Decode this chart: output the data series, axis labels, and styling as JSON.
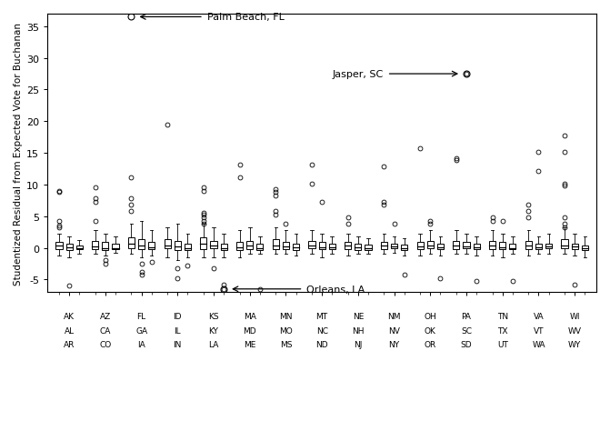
{
  "ylabel": "Studentized Residual from Expected Vote for Buchanan",
  "ylim": [
    -7,
    37
  ],
  "yticks": [
    -5,
    0,
    5,
    10,
    15,
    20,
    25,
    30,
    35
  ],
  "state_groups": [
    [
      "AK",
      "AL",
      "AR"
    ],
    [
      "AZ",
      "CA",
      "CO"
    ],
    [
      "FL",
      "GA",
      "IA"
    ],
    [
      "ID",
      "IL",
      "IN"
    ],
    [
      "KS",
      "KY",
      "LA"
    ],
    [
      "MA",
      "MD",
      "ME"
    ],
    [
      "MN",
      "MO",
      "MS"
    ],
    [
      "MT",
      "NC",
      "ND"
    ],
    [
      "NE",
      "NH",
      "NJ"
    ],
    [
      "NM",
      "NV",
      "NY"
    ],
    [
      "OH",
      "OK",
      "OR"
    ],
    [
      "PA",
      "SC",
      "SD"
    ],
    [
      "TN",
      "TX",
      "UT"
    ],
    [
      "VA",
      "VT",
      "WA"
    ],
    [
      "WI",
      "WV",
      "WY"
    ]
  ],
  "background_color": "#ffffff",
  "box_color": "white",
  "group_stats": [
    {
      "medians": [
        0.3,
        0.1,
        0.0
      ],
      "q1": [
        -0.2,
        -0.3,
        -0.2
      ],
      "q3": [
        0.9,
        0.6,
        0.4
      ],
      "wlo": [
        -1.2,
        -1.5,
        -1.0
      ],
      "whi": [
        2.2,
        1.8,
        1.2
      ],
      "outliers": [
        [
          3.5,
          3.3,
          4.2,
          8.8,
          9.0
        ],
        [
          -6.0
        ],
        []
      ]
    },
    {
      "medians": [
        0.2,
        0.0,
        0.0
      ],
      "q1": [
        -0.2,
        -0.3,
        -0.2
      ],
      "q3": [
        1.1,
        0.9,
        0.6
      ],
      "wlo": [
        -1.0,
        -1.2,
        -0.8
      ],
      "whi": [
        2.8,
        2.2,
        1.8
      ],
      "outliers": [
        [
          4.2,
          7.8,
          7.2,
          9.5
        ],
        [
          -2.0,
          -2.5
        ],
        []
      ]
    },
    {
      "medians": [
        0.6,
        0.3,
        0.1
      ],
      "q1": [
        -0.1,
        -0.2,
        -0.2
      ],
      "q3": [
        1.6,
        1.3,
        0.9
      ],
      "wlo": [
        -1.0,
        -1.5,
        -1.2
      ],
      "whi": [
        3.8,
        4.2,
        2.8
      ],
      "outliers": [
        [
          11.2,
          7.8,
          6.8,
          5.8
        ],
        [
          -2.5,
          -4.2,
          -3.8
        ],
        [
          -2.2
        ]
      ]
    },
    {
      "medians": [
        0.4,
        0.2,
        0.0
      ],
      "q1": [
        -0.1,
        -0.3,
        -0.3
      ],
      "q3": [
        1.3,
        1.1,
        0.7
      ],
      "wlo": [
        -1.5,
        -2.0,
        -1.5
      ],
      "whi": [
        3.2,
        3.8,
        2.2
      ],
      "outliers": [
        [
          19.5
        ],
        [
          -4.8,
          -3.2
        ],
        [
          -2.8
        ]
      ]
    },
    {
      "medians": [
        0.6,
        0.4,
        -0.1
      ],
      "q1": [
        -0.2,
        -0.1,
        -0.4
      ],
      "q3": [
        1.6,
        1.1,
        0.6
      ],
      "wlo": [
        -1.5,
        -1.5,
        -1.5
      ],
      "whi": [
        3.8,
        3.2,
        2.2
      ],
      "outliers": [
        [
          9.5,
          9.0,
          5.5,
          5.2,
          4.8,
          4.2,
          3.8
        ],
        [
          -3.2
        ],
        [
          -5.8,
          -6.5
        ]
      ]
    },
    {
      "medians": [
        0.1,
        0.3,
        0.0
      ],
      "q1": [
        -0.4,
        -0.2,
        -0.3
      ],
      "q3": [
        0.9,
        1.1,
        0.6
      ],
      "wlo": [
        -1.5,
        -1.0,
        -1.0
      ],
      "whi": [
        2.8,
        3.2,
        1.8
      ],
      "outliers": [
        [
          13.2,
          11.2
        ],
        [],
        [
          -6.5
        ]
      ]
    },
    {
      "medians": [
        0.3,
        0.2,
        0.1
      ],
      "q1": [
        -0.2,
        -0.2,
        -0.3
      ],
      "q3": [
        1.3,
        0.9,
        0.6
      ],
      "wlo": [
        -1.0,
        -1.0,
        -1.2
      ],
      "whi": [
        3.2,
        2.8,
        2.2
      ],
      "outliers": [
        [
          9.2,
          8.8,
          8.2,
          5.8,
          5.2
        ],
        [
          3.8
        ],
        []
      ]
    },
    {
      "medians": [
        0.4,
        0.1,
        0.1
      ],
      "q1": [
        -0.1,
        -0.2,
        -0.2
      ],
      "q3": [
        1.1,
        0.9,
        0.6
      ],
      "wlo": [
        -1.0,
        -1.5,
        -1.0
      ],
      "whi": [
        2.8,
        2.2,
        1.8
      ],
      "outliers": [
        [
          13.2,
          10.2
        ],
        [
          7.2
        ],
        []
      ]
    },
    {
      "medians": [
        0.3,
        0.1,
        0.0
      ],
      "q1": [
        -0.2,
        -0.3,
        -0.3
      ],
      "q3": [
        0.9,
        0.6,
        0.5
      ],
      "wlo": [
        -1.2,
        -1.0,
        -1.0
      ],
      "whi": [
        2.2,
        1.8,
        1.5
      ],
      "outliers": [
        [
          4.8,
          3.8
        ],
        [],
        []
      ]
    },
    {
      "medians": [
        0.3,
        0.2,
        0.0
      ],
      "q1": [
        -0.2,
        -0.1,
        -0.3
      ],
      "q3": [
        0.9,
        0.7,
        0.5
      ],
      "wlo": [
        -1.0,
        -0.8,
        -1.2
      ],
      "whi": [
        2.2,
        1.8,
        1.5
      ],
      "outliers": [
        [
          12.8,
          7.2,
          6.8
        ],
        [
          3.8
        ],
        [
          -4.2
        ]
      ]
    },
    {
      "medians": [
        0.2,
        0.4,
        0.1
      ],
      "q1": [
        -0.2,
        -0.1,
        -0.2
      ],
      "q3": [
        0.9,
        1.1,
        0.7
      ],
      "wlo": [
        -1.2,
        -1.0,
        -1.2
      ],
      "whi": [
        2.2,
        2.8,
        1.8
      ],
      "outliers": [
        [
          15.8
        ],
        [
          4.2,
          3.8
        ],
        [
          -4.8
        ]
      ]
    },
    {
      "medians": [
        0.3,
        0.2,
        0.1
      ],
      "q1": [
        -0.2,
        -0.1,
        -0.2
      ],
      "q3": [
        1.1,
        0.9,
        0.6
      ],
      "wlo": [
        -1.0,
        -1.0,
        -1.2
      ],
      "whi": [
        2.8,
        2.2,
        1.8
      ],
      "outliers": [
        [
          14.2,
          13.8
        ],
        [
          27.5
        ],
        [
          -5.2
        ]
      ]
    },
    {
      "medians": [
        0.3,
        0.1,
        0.0
      ],
      "q1": [
        -0.2,
        -0.2,
        -0.2
      ],
      "q3": [
        1.1,
        0.9,
        0.6
      ],
      "wlo": [
        -1.2,
        -1.5,
        -1.0
      ],
      "whi": [
        2.8,
        2.2,
        1.8
      ],
      "outliers": [
        [
          4.8,
          4.2
        ],
        [
          4.2
        ],
        [
          -5.2
        ]
      ]
    },
    {
      "medians": [
        0.3,
        0.1,
        0.2
      ],
      "q1": [
        -0.2,
        -0.2,
        -0.1
      ],
      "q3": [
        1.1,
        0.6,
        0.7
      ],
      "wlo": [
        -1.2,
        -1.0,
        -1.0
      ],
      "whi": [
        2.8,
        1.8,
        2.2
      ],
      "outliers": [
        [
          6.8,
          5.8,
          4.8
        ],
        [
          12.2,
          15.2
        ],
        []
      ]
    },
    {
      "medians": [
        0.4,
        0.2,
        0.0
      ],
      "q1": [
        -0.1,
        -0.2,
        -0.3
      ],
      "q3": [
        1.3,
        0.7,
        0.4
      ],
      "wlo": [
        -1.0,
        -1.2,
        -1.5
      ],
      "whi": [
        3.2,
        2.2,
        1.8
      ],
      "outliers": [
        [
          17.8,
          15.2,
          10.2,
          9.8,
          4.8,
          3.8,
          3.2
        ],
        [
          -5.8
        ],
        []
      ]
    }
  ]
}
